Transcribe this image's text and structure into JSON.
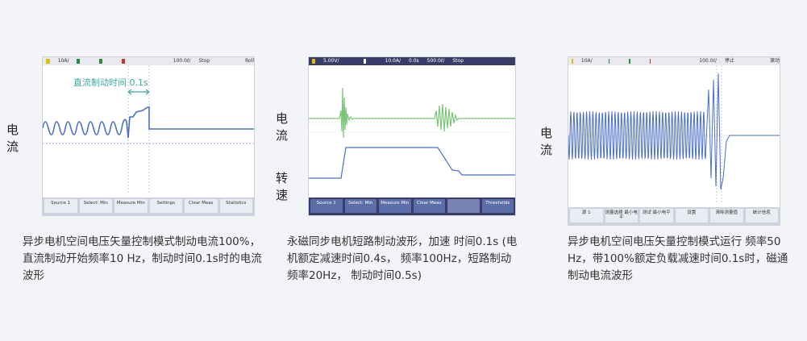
{
  "panels": [
    {
      "side_labels": [
        "电流"
      ],
      "scope": {
        "topbar": [
          "10A/",
          "100.0ℓ/",
          "Stop",
          "Roll"
        ],
        "annotation": "直流制动时间 0.1s",
        "softkeys": [
          "Source 1",
          "Select: Min",
          "Measure Min",
          "Settings",
          "Clear Meas",
          "Statistics"
        ]
      },
      "caption": "异步电机空间电压矢量控制模式制动电流100%，直流制动开始频率10 Hz，制动时间0.1s时的电流波形"
    },
    {
      "side_labels": [
        "电流",
        "转速"
      ],
      "scope": {
        "topbar": [
          "5.00V/",
          "10.0A/",
          "0.0s",
          "500.0ℓ/",
          "Stop"
        ],
        "softkeys": [
          "Source 1",
          "Select: Min",
          "Measure Min",
          "Clear Meas",
          "",
          "Thresholds"
        ]
      },
      "caption": "永磁同步电机短路制动波形，加速 时间0.1s (电机额定减速时间0.4s， 频率100Hz，短路制动频率20Hz， 制动时间0.5s)"
    },
    {
      "side_labels": [
        "电流"
      ],
      "scope": {
        "topbar": [
          "10A/",
          "100.0ℓ/",
          "停止",
          "滚动"
        ],
        "softkeys": [
          "源 1",
          "测量选择 最小电平",
          "测试 最小电平",
          "设置",
          "清除测量值",
          "统计信息"
        ]
      },
      "caption": "异步电机空间电压矢量控制模式运行 频率50 Hz，带100%额定负载减速时间0.1s时，磁通制动电流波形"
    }
  ],
  "colors": {
    "background": "#f2f4f8",
    "scope_bg": "#ffffff",
    "trace_blue": "#4a6fc4",
    "trace_green": "#7cc47a",
    "annotation": "#3aa99f",
    "bar_dark": "#3a3d6a",
    "key_blue": "#5b6ea8"
  }
}
